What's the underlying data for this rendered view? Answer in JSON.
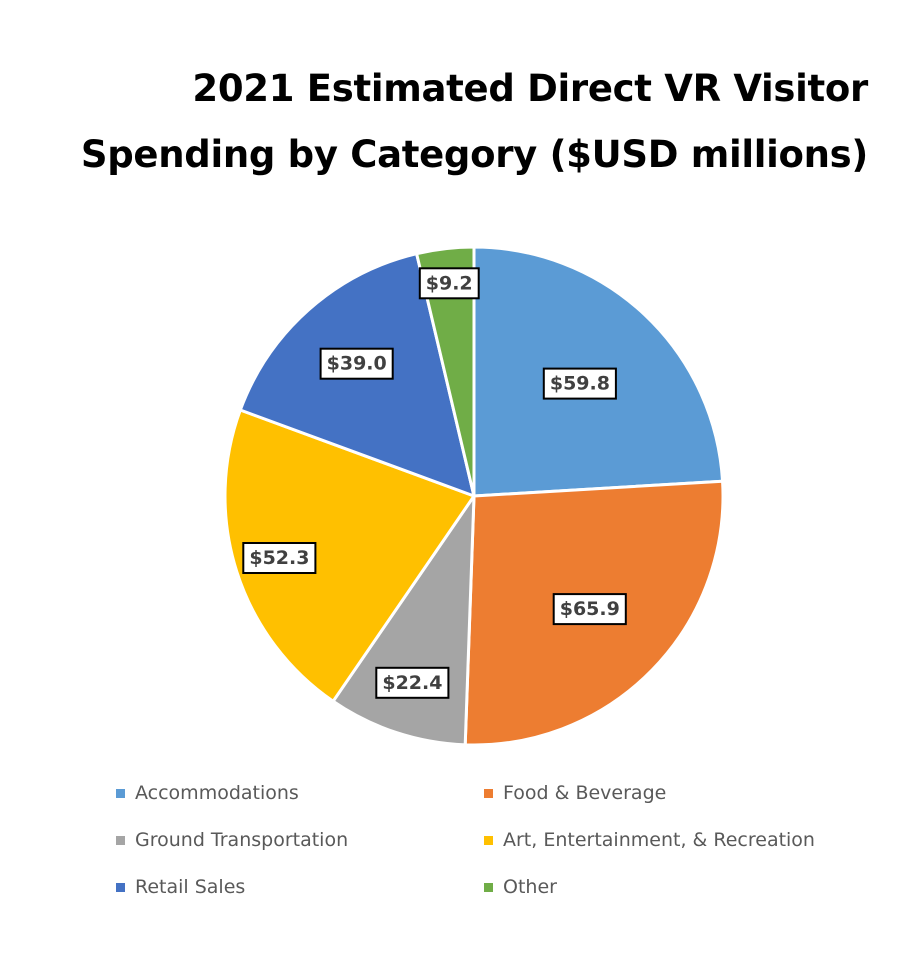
{
  "chart_data": {
    "type": "pie",
    "title": "2021 Estimated Direct VR Visitor Spending by Category ($USD millions)",
    "title_lines": [
      "2021 Estimated Direct VR Visitor",
      "Spending by Category ($USD millions)"
    ],
    "categories": [
      "Accommodations",
      "Food & Beverage",
      "Ground Transportation",
      "Art, Entertainment, & Recreation",
      "Retail Sales",
      "Other"
    ],
    "values": [
      59.8,
      65.9,
      22.4,
      52.3,
      39.0,
      9.2
    ],
    "data_labels": [
      "$59.8",
      "$65.9",
      "$22.4",
      "$52.3",
      "$39.0",
      "$9.2"
    ],
    "colors": [
      "#5B9BD5",
      "#ED7D31",
      "#A5A5A5",
      "#FFC000",
      "#4472C4",
      "#70AD47"
    ],
    "start_angle": "12 o'clock",
    "direction": "clockwise",
    "legend_position": "bottom"
  }
}
